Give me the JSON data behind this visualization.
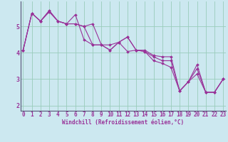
{
  "xlabel": "Windchill (Refroidissement éolien,°C)",
  "background_color": "#cce8f0",
  "line_color": "#993399",
  "x_values": [
    0,
    1,
    2,
    3,
    4,
    5,
    6,
    7,
    8,
    9,
    10,
    11,
    12,
    13,
    14,
    15,
    16,
    17,
    18,
    19,
    20,
    21,
    22,
    23
  ],
  "series": [
    [
      4.1,
      5.5,
      5.2,
      5.6,
      5.2,
      5.1,
      5.1,
      5.0,
      5.1,
      4.3,
      4.3,
      4.4,
      4.6,
      4.1,
      4.1,
      3.9,
      3.85,
      3.85,
      2.55,
      2.9,
      3.55,
      2.5,
      2.5,
      3.0
    ],
    [
      4.1,
      5.5,
      5.2,
      5.6,
      5.2,
      5.1,
      5.1,
      5.0,
      4.3,
      4.3,
      4.1,
      4.4,
      4.6,
      4.1,
      4.05,
      3.85,
      3.7,
      3.7,
      2.55,
      2.9,
      3.4,
      2.5,
      2.5,
      3.0
    ],
    [
      4.1,
      5.5,
      5.2,
      5.55,
      5.2,
      5.1,
      5.45,
      4.5,
      4.3,
      4.3,
      4.1,
      4.4,
      4.05,
      4.1,
      4.05,
      3.7,
      3.6,
      3.45,
      2.55,
      2.9,
      3.2,
      2.5,
      2.5,
      3.0
    ]
  ],
  "ylim": [
    1.8,
    5.95
  ],
  "xlim": [
    -0.3,
    23.3
  ],
  "yticks": [
    2,
    3,
    4,
    5
  ],
  "xticks": [
    0,
    1,
    2,
    3,
    4,
    5,
    6,
    7,
    8,
    9,
    10,
    11,
    12,
    13,
    14,
    15,
    16,
    17,
    18,
    19,
    20,
    21,
    22,
    23
  ],
  "grid_color": "#99ccbb",
  "marker": "D",
  "markersize": 1.8,
  "linewidth": 0.8,
  "tick_fontsize": 5.5,
  "xlabel_fontsize": 5.5
}
